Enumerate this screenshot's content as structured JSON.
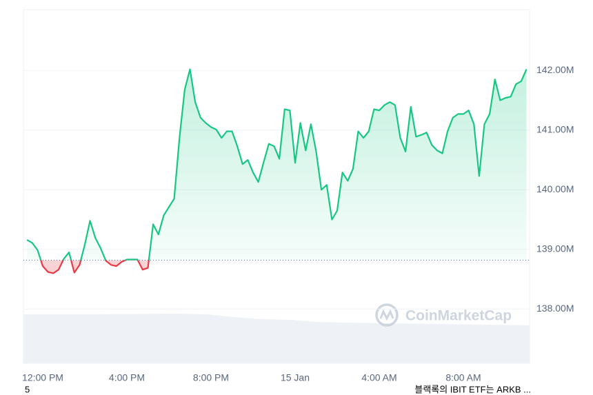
{
  "chart_data": {
    "type": "line",
    "watermark": "CoinMarketCap",
    "footer_left": "5",
    "footer_right": "블랙록의 IBIT ETF는 ARKB ...",
    "categories": [
      null,
      null,
      null,
      "12:00 PM",
      null,
      null,
      null,
      null,
      null,
      null,
      null,
      null,
      null,
      null,
      null,
      null,
      null,
      null,
      null,
      "4:00 PM",
      null,
      null,
      null,
      null,
      null,
      null,
      null,
      null,
      null,
      null,
      null,
      null,
      null,
      null,
      null,
      "8:00 PM",
      null,
      null,
      null,
      null,
      null,
      null,
      null,
      null,
      null,
      null,
      null,
      null,
      null,
      null,
      null,
      "15 Jan",
      null,
      null,
      null,
      null,
      null,
      null,
      null,
      null,
      null,
      null,
      null,
      null,
      null,
      null,
      null,
      "4:00 AM",
      null,
      null,
      null,
      null,
      null,
      null,
      null,
      null,
      null,
      null,
      null,
      null,
      null,
      null,
      null,
      "8:00 AM",
      null,
      null,
      null,
      null,
      null,
      null,
      null,
      null,
      null,
      null,
      null,
      null
    ],
    "values": [
      139.16,
      139.11,
      138.99,
      138.72,
      138.62,
      138.6,
      138.66,
      138.84,
      138.95,
      138.61,
      138.74,
      139.08,
      139.48,
      139.19,
      139.02,
      138.81,
      138.74,
      138.72,
      138.79,
      138.83,
      138.83,
      138.83,
      138.66,
      138.69,
      139.42,
      139.25,
      139.57,
      139.71,
      139.85,
      140.87,
      141.68,
      142.02,
      141.47,
      141.21,
      141.12,
      141.05,
      141.01,
      140.87,
      140.98,
      140.98,
      140.73,
      140.43,
      140.5,
      140.29,
      140.13,
      140.46,
      140.77,
      140.73,
      140.52,
      141.35,
      141.33,
      140.45,
      141.12,
      140.66,
      141.1,
      140.64,
      140.0,
      140.08,
      139.5,
      139.65,
      140.29,
      140.15,
      140.35,
      140.98,
      140.87,
      140.98,
      141.35,
      141.33,
      141.42,
      141.47,
      141.42,
      140.87,
      140.64,
      141.39,
      140.89,
      140.92,
      140.96,
      140.75,
      140.66,
      140.61,
      140.98,
      141.21,
      141.27,
      141.27,
      141.33,
      141.1,
      140.23,
      141.1,
      141.27,
      141.85,
      141.5,
      141.54,
      141.56,
      141.77,
      141.82,
      142.02
    ],
    "baseline": 138.82,
    "color_up": "#16c784",
    "color_down": "#ea3943",
    "ylim": [
      137.09,
      143.02
    ],
    "yticks": [
      {
        "value": 138,
        "label": "138.00M"
      },
      {
        "value": 139,
        "label": "139.00M"
      },
      {
        "value": 140,
        "label": "140.00M"
      },
      {
        "value": 141,
        "label": "141.00M"
      },
      {
        "value": 142,
        "label": "142.00M"
      }
    ],
    "grid": true
  }
}
